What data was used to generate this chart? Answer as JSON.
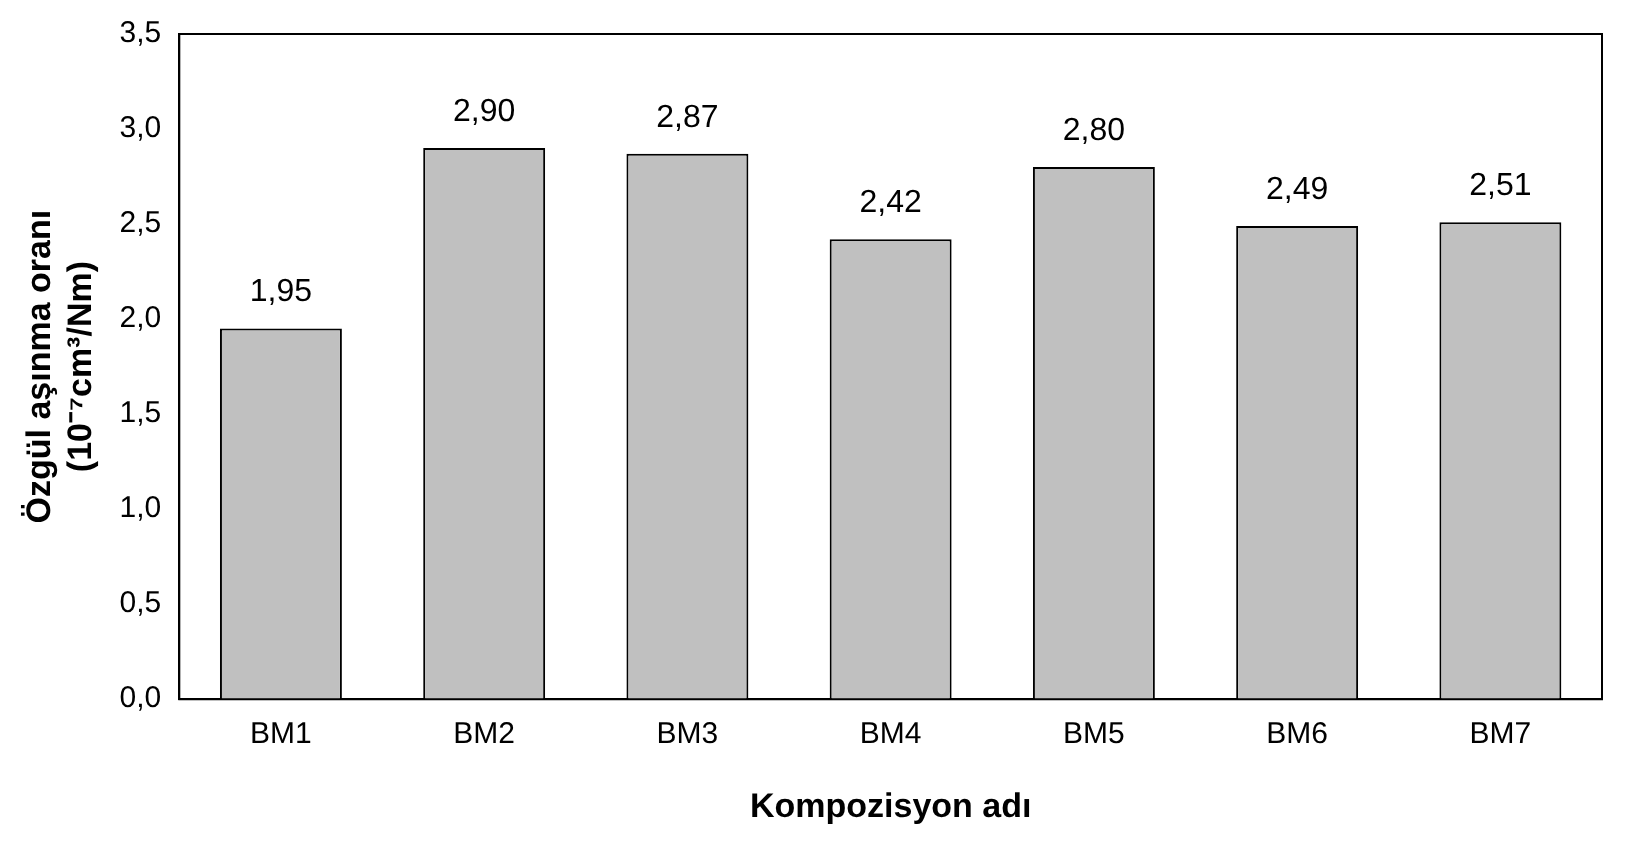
{
  "chart_data": {
    "type": "bar",
    "xlabel": "Kompozisyon adı",
    "ylabel": "Özgül aşınma oranı\n(10⁻⁷cm³/Nm)",
    "categories": [
      "BM1",
      "BM2",
      "BM3",
      "BM4",
      "BM5",
      "BM6",
      "BM7"
    ],
    "values": [
      1.95,
      2.9,
      2.87,
      2.42,
      2.8,
      2.49,
      2.51
    ],
    "value_labels": [
      "1,95",
      "2,90",
      "2,87",
      "2,42",
      "2,80",
      "2,49",
      "2,51"
    ],
    "color": "#c0c0c0",
    "ylim": [
      0,
      3.5
    ],
    "yticks": [
      {
        "value": 0,
        "label": "0,0"
      },
      {
        "value": 0.5,
        "label": "0,5"
      },
      {
        "value": 1,
        "label": "1,0"
      },
      {
        "value": 1.5,
        "label": "1,5"
      },
      {
        "value": 2,
        "label": "2,0"
      },
      {
        "value": 2.5,
        "label": "2,5"
      },
      {
        "value": 3,
        "label": "3,0"
      },
      {
        "value": 3.5,
        "label": "3,5"
      }
    ],
    "grid": false,
    "legend": false
  }
}
